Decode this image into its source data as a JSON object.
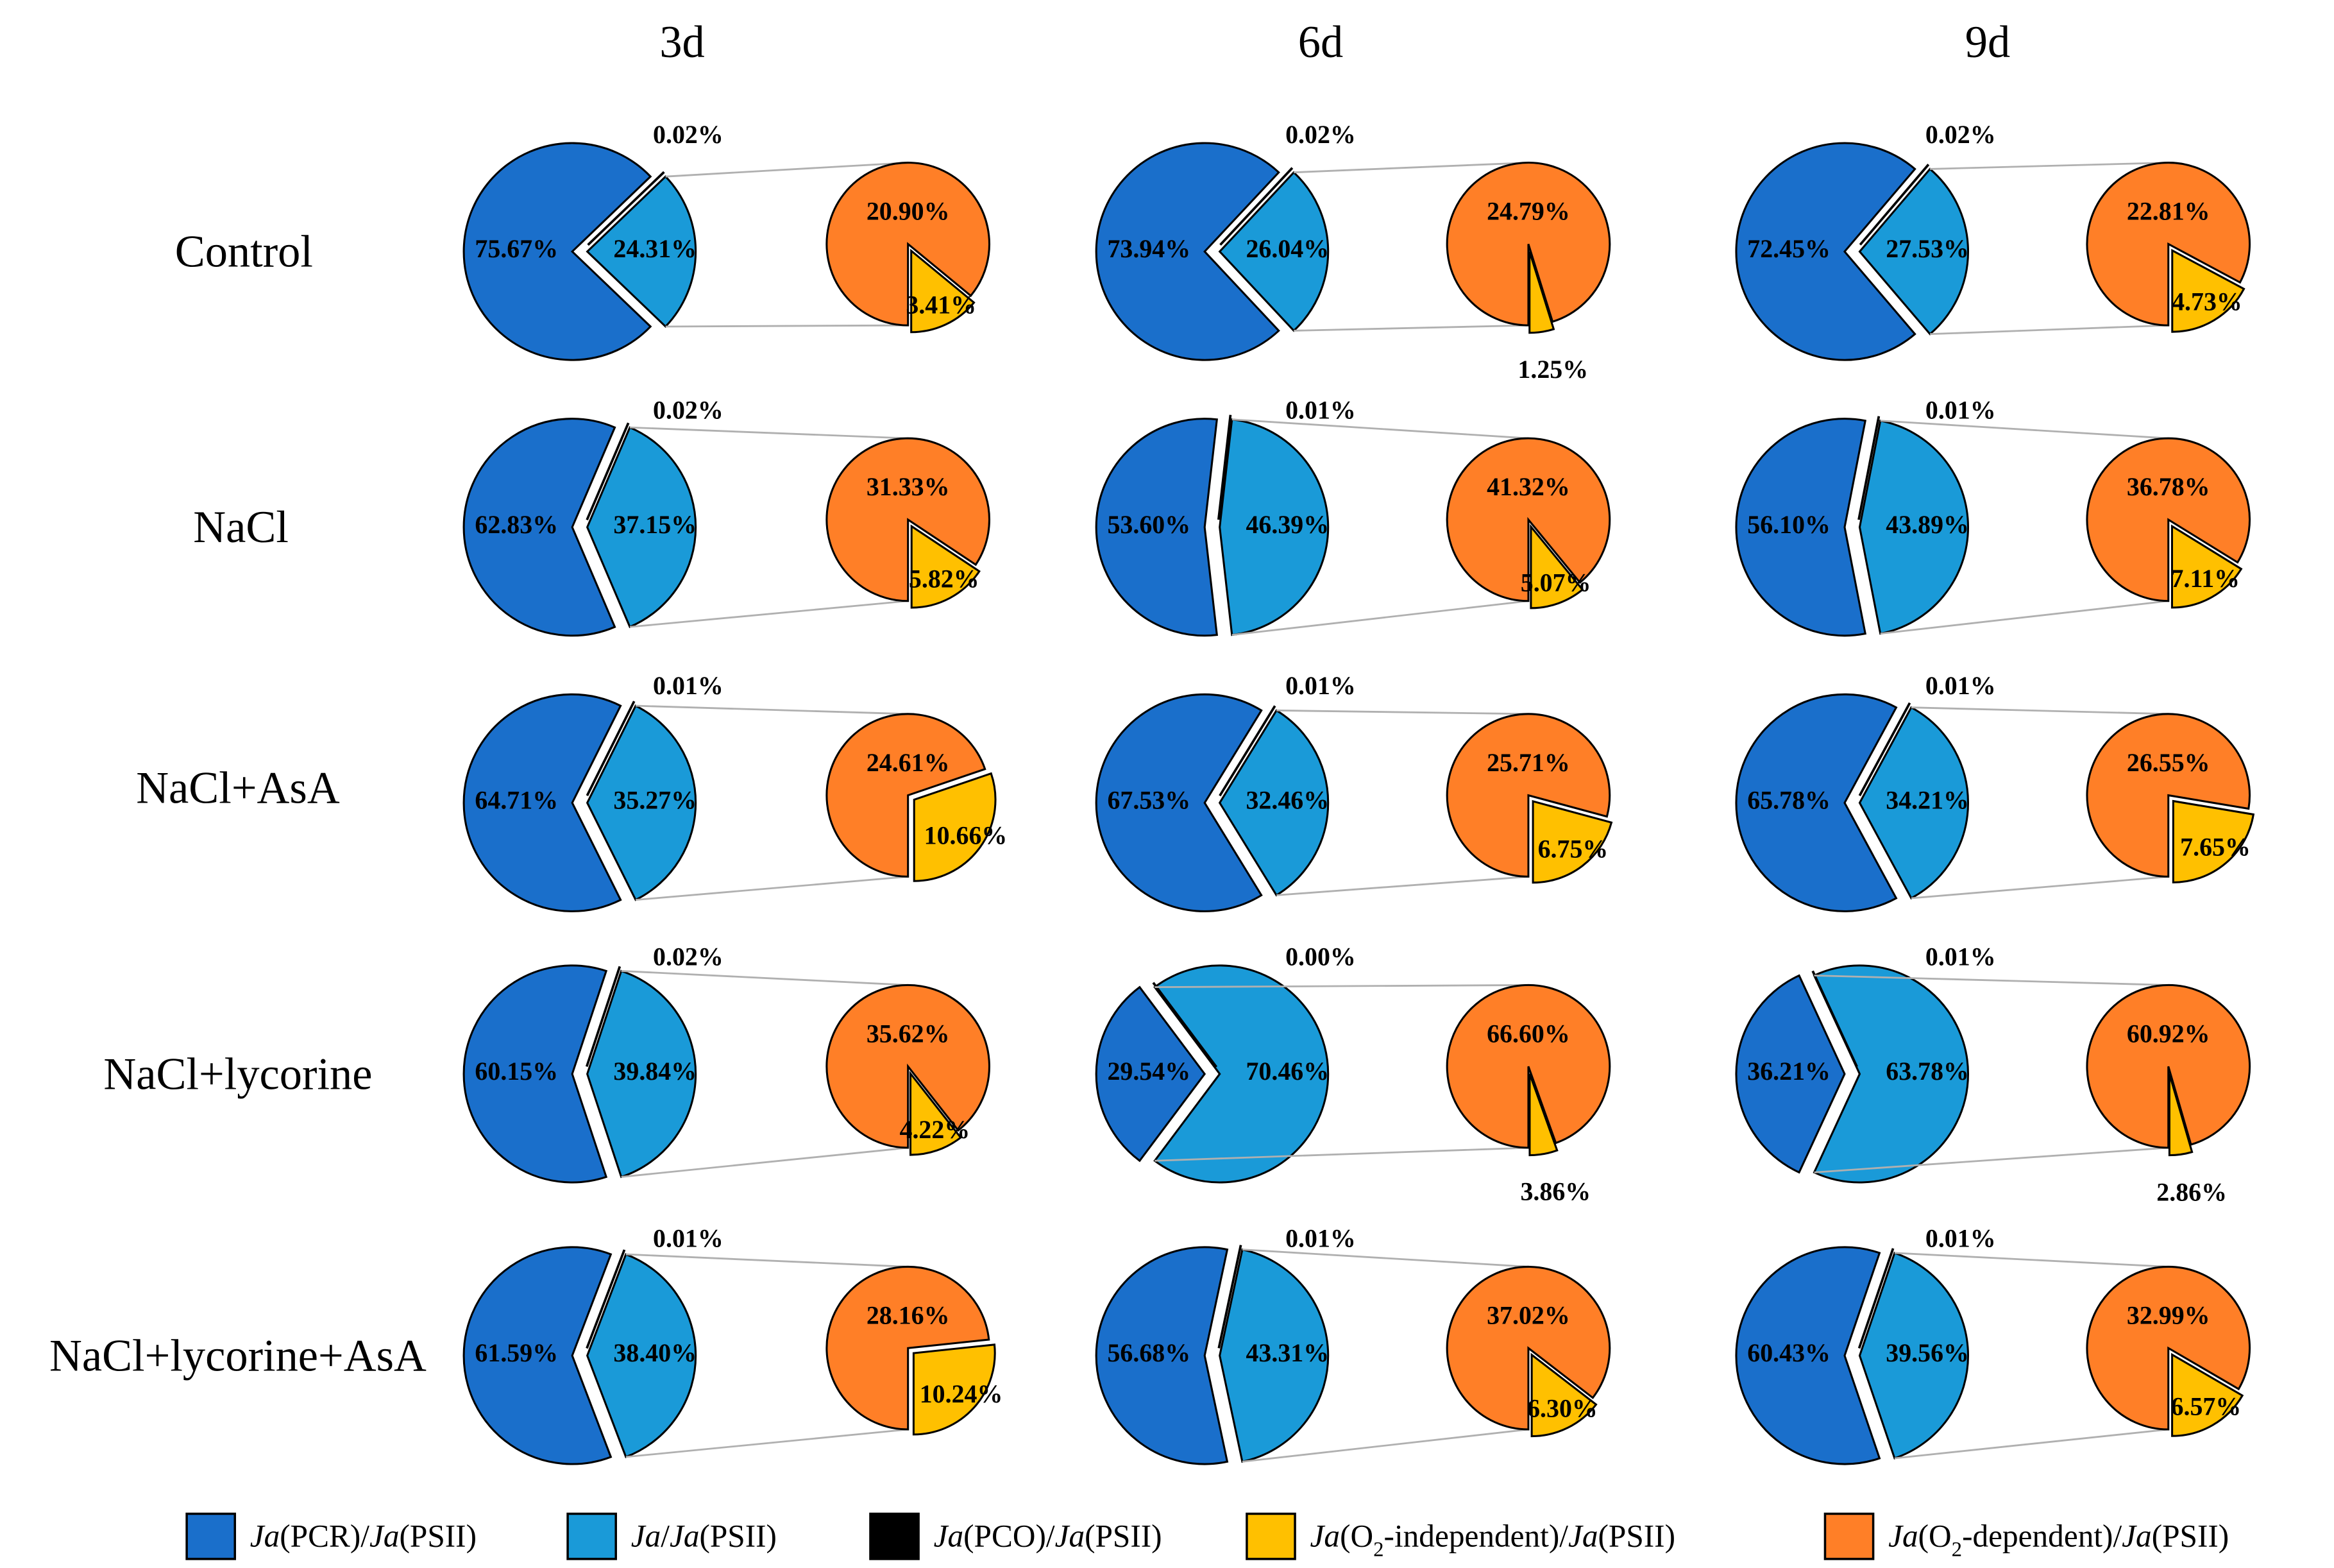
{
  "chart_data": {
    "type": "pie",
    "title": "",
    "columns": [
      "3d",
      "6d",
      "9d"
    ],
    "rows": [
      "Control",
      "NaCl",
      "NaCl+AsA",
      "NaCl+lycorine",
      "NaCl+lycorine+AsA"
    ],
    "legend": [
      {
        "key": "pcr",
        "label": "Ja(PCR)/Ja(PSII)",
        "color": "#1a6fcb"
      },
      {
        "key": "ja",
        "label": "Ja/Ja(PSII)",
        "color": "#1a9ad8"
      },
      {
        "key": "pco",
        "label": "Ja(PCO)/Ja(PSII)",
        "color": "#000000"
      },
      {
        "key": "ind",
        "label": "Ja(O2-independent)/Ja(PSII)",
        "color": "#ffc000"
      },
      {
        "key": "dep",
        "label": "Ja(O2-dependent)/Ja(PSII)",
        "color": "#ff7f27"
      }
    ],
    "legend_position": "bottom",
    "units": "%",
    "values": [
      [
        {
          "pcr": 75.67,
          "ja": 24.31,
          "pco": 0.02,
          "ind": 3.41,
          "dep": 20.9
        },
        {
          "pcr": 73.94,
          "ja": 26.04,
          "pco": 0.02,
          "ind": 1.25,
          "dep": 24.79
        },
        {
          "pcr": 72.45,
          "ja": 27.53,
          "pco": 0.02,
          "ind": 4.73,
          "dep": 22.81
        }
      ],
      [
        {
          "pcr": 62.83,
          "ja": 37.15,
          "pco": 0.02,
          "ind": 5.82,
          "dep": 31.33
        },
        {
          "pcr": 53.6,
          "ja": 46.39,
          "pco": 0.01,
          "ind": 5.07,
          "dep": 41.32
        },
        {
          "pcr": 56.1,
          "ja": 43.89,
          "pco": 0.01,
          "ind": 7.11,
          "dep": 36.78
        }
      ],
      [
        {
          "pcr": 64.71,
          "ja": 35.27,
          "pco": 0.01,
          "ind": 10.66,
          "dep": 24.61
        },
        {
          "pcr": 67.53,
          "ja": 32.46,
          "pco": 0.01,
          "ind": 6.75,
          "dep": 25.71
        },
        {
          "pcr": 65.78,
          "ja": 34.21,
          "pco": 0.01,
          "ind": 7.65,
          "dep": 26.55
        }
      ],
      [
        {
          "pcr": 60.15,
          "ja": 39.84,
          "pco": 0.02,
          "ind": 4.22,
          "dep": 35.62
        },
        {
          "pcr": 29.54,
          "ja": 70.46,
          "pco": 0.0,
          "ind": 3.86,
          "dep": 66.6
        },
        {
          "pcr": 36.21,
          "ja": 63.78,
          "pco": 0.01,
          "ind": 2.86,
          "dep": 60.92
        }
      ],
      [
        {
          "pcr": 61.59,
          "ja": 38.4,
          "pco": 0.01,
          "ind": 10.24,
          "dep": 28.16
        },
        {
          "pcr": 56.68,
          "ja": 43.31,
          "pco": 0.01,
          "ind": 6.3,
          "dep": 37.02
        },
        {
          "pcr": 60.43,
          "ja": 39.56,
          "pco": 0.01,
          "ind": 6.57,
          "dep": 32.99
        }
      ]
    ]
  }
}
